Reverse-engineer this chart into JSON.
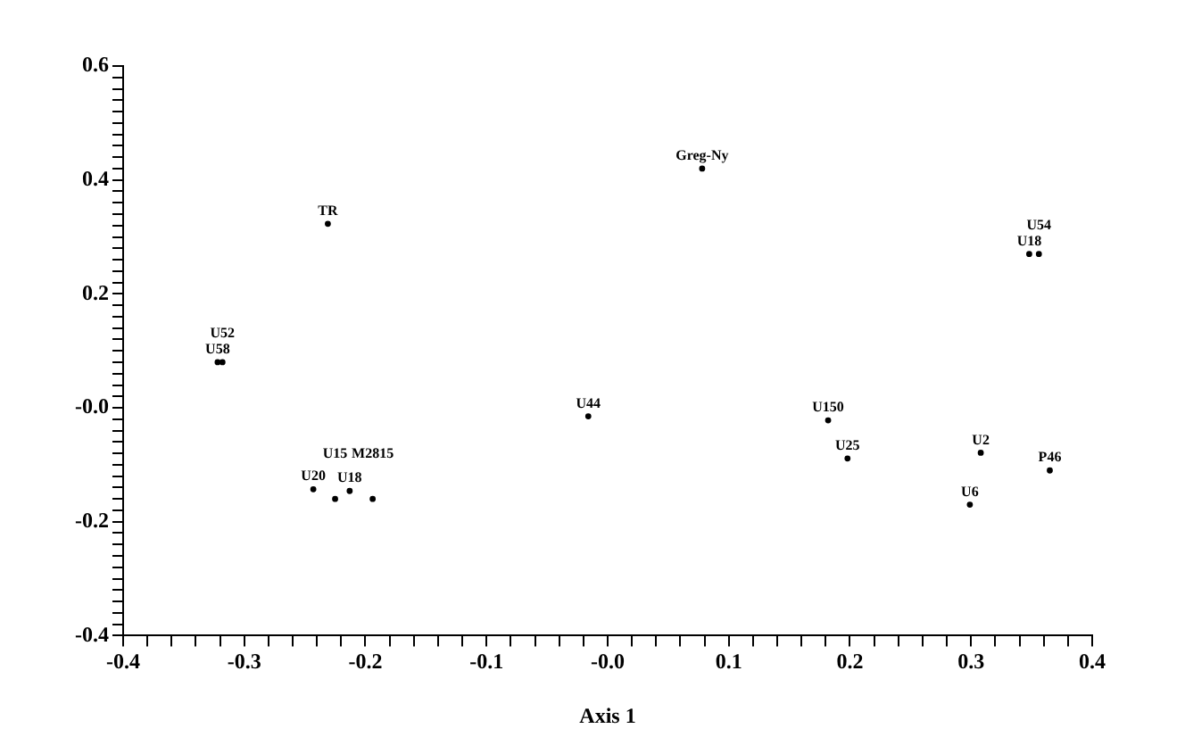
{
  "chart_data": {
    "type": "scatter",
    "xlabel": "Axis 1",
    "marker": "circle",
    "grid": false,
    "legend": false,
    "xlim": [
      -0.4,
      0.4
    ],
    "ylim": [
      -0.4,
      0.6
    ],
    "xticks": [
      -0.4,
      {
        "value": -0.38,
        "label": null
      },
      {
        "value": -0.36,
        "label": null
      },
      {
        "value": -0.34,
        "label": null
      },
      {
        "value": -0.32,
        "label": null
      },
      -0.3,
      {
        "value": -0.28,
        "label": null
      },
      {
        "value": -0.26,
        "label": null
      },
      {
        "value": -0.24,
        "label": null
      },
      {
        "value": -0.22,
        "label": null
      },
      -0.2,
      {
        "value": -0.18,
        "label": null
      },
      {
        "value": -0.16,
        "label": null
      },
      {
        "value": -0.14,
        "label": null
      },
      {
        "value": -0.12,
        "label": null
      },
      -0.1,
      {
        "value": -0.08,
        "label": null
      },
      {
        "value": -0.06,
        "label": null
      },
      {
        "value": -0.04,
        "label": null
      },
      {
        "value": -0.02,
        "label": null
      },
      {
        "value": 0,
        "label": "-0.0"
      },
      {
        "value": 0.02,
        "label": null
      },
      {
        "value": 0.04,
        "label": null
      },
      {
        "value": 0.06,
        "label": null
      },
      {
        "value": 0.08,
        "label": null
      },
      0.1,
      {
        "value": 0.12,
        "label": null
      },
      {
        "value": 0.14,
        "label": null
      },
      {
        "value": 0.16,
        "label": null
      },
      {
        "value": 0.18,
        "label": null
      },
      0.2,
      {
        "value": 0.22,
        "label": null
      },
      {
        "value": 0.24,
        "label": null
      },
      {
        "value": 0.26,
        "label": null
      },
      {
        "value": 0.28,
        "label": null
      },
      0.3,
      {
        "value": 0.32,
        "label": null
      },
      {
        "value": 0.34,
        "label": null
      },
      {
        "value": 0.36,
        "label": null
      },
      {
        "value": 0.38,
        "label": null
      },
      0.4
    ],
    "yticks": [
      -0.4,
      {
        "value": -0.38,
        "label": null
      },
      {
        "value": -0.36,
        "label": null
      },
      {
        "value": -0.34,
        "label": null
      },
      {
        "value": -0.32,
        "label": null
      },
      {
        "value": -0.3,
        "label": null
      },
      {
        "value": -0.28,
        "label": null
      },
      {
        "value": -0.26,
        "label": null
      },
      {
        "value": -0.24,
        "label": null
      },
      {
        "value": -0.22,
        "label": null
      },
      -0.2,
      {
        "value": -0.18,
        "label": null
      },
      {
        "value": -0.16,
        "label": null
      },
      {
        "value": -0.14,
        "label": null
      },
      {
        "value": -0.12,
        "label": null
      },
      {
        "value": -0.1,
        "label": null
      },
      {
        "value": -0.08,
        "label": null
      },
      {
        "value": -0.06,
        "label": null
      },
      {
        "value": -0.04,
        "label": null
      },
      {
        "value": -0.02,
        "label": null
      },
      {
        "value": 0,
        "label": "-0.0"
      },
      {
        "value": 0.02,
        "label": null
      },
      {
        "value": 0.04,
        "label": null
      },
      {
        "value": 0.06,
        "label": null
      },
      {
        "value": 0.08,
        "label": null
      },
      {
        "value": 0.1,
        "label": null
      },
      {
        "value": 0.12,
        "label": null
      },
      {
        "value": 0.14,
        "label": null
      },
      {
        "value": 0.16,
        "label": null
      },
      {
        "value": 0.18,
        "label": null
      },
      0.2,
      {
        "value": 0.22,
        "label": null
      },
      {
        "value": 0.24,
        "label": null
      },
      {
        "value": 0.26,
        "label": null
      },
      {
        "value": 0.28,
        "label": null
      },
      {
        "value": 0.3,
        "label": null
      },
      {
        "value": 0.32,
        "label": null
      },
      {
        "value": 0.34,
        "label": null
      },
      {
        "value": 0.36,
        "label": null
      },
      {
        "value": 0.38,
        "label": null
      },
      0.4,
      {
        "value": 0.42,
        "label": null
      },
      {
        "value": 0.44,
        "label": null
      },
      {
        "value": 0.46,
        "label": null
      },
      {
        "value": 0.48,
        "label": null
      },
      {
        "value": 0.5,
        "label": null
      },
      {
        "value": 0.52,
        "label": null
      },
      {
        "value": 0.54,
        "label": null
      },
      {
        "value": 0.56,
        "label": null
      },
      {
        "value": 0.58,
        "label": null
      },
      0.6
    ],
    "series": [
      {
        "color": "#000000",
        "x": [
          0.078,
          -0.231,
          0.348,
          0.356,
          -0.322,
          -0.318,
          -0.016,
          0.182,
          0.198,
          0.308,
          0.365,
          0.299,
          -0.243,
          -0.213,
          -0.225,
          -0.194
        ],
        "values": [
          0.42,
          0.323,
          0.27,
          0.27,
          0.08,
          0.08,
          -0.015,
          -0.022,
          -0.089,
          -0.079,
          -0.11,
          -0.17,
          -0.143,
          -0.146,
          -0.16,
          -0.16
        ],
        "value_labels": [
          "Greg-Ny",
          "TR",
          "U18",
          "U54",
          "U58",
          "U52",
          "U44",
          "U150",
          "U25",
          "U2",
          "P46",
          "U6",
          "U20",
          "U18",
          "U15",
          "M2815"
        ]
      }
    ]
  }
}
